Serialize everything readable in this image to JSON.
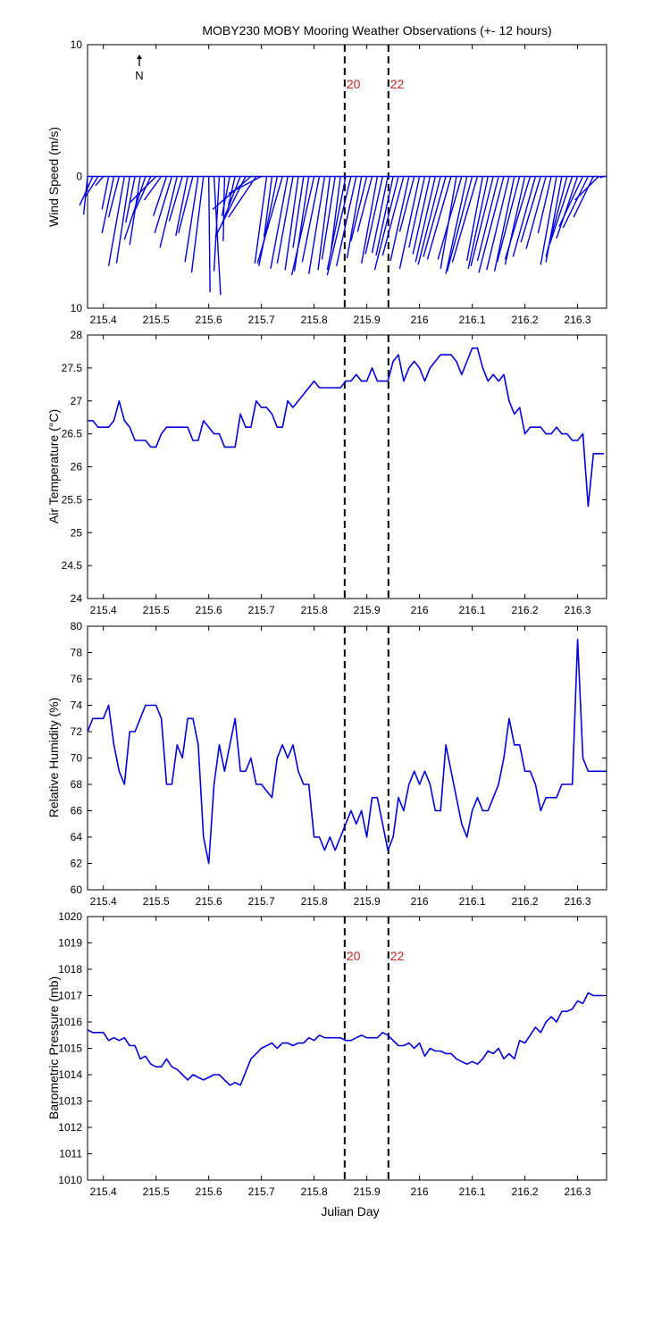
{
  "title": "MOBY230 MOBY Mooring Weather Observations (+- 12 hours)",
  "xlabel": "Julian Day",
  "north_label": "N",
  "markers": [
    {
      "x": 215.858,
      "label": "20"
    },
    {
      "x": 215.941,
      "label": "22"
    }
  ],
  "colors": {
    "series": "#0000dd",
    "marker_label": "#cc2222",
    "axis": "#000000"
  },
  "chart_data": [
    {
      "type": "line",
      "panel": "wind",
      "ylabel": "Wind Speed (m/s)",
      "xlim": [
        215.37,
        216.355
      ],
      "ylim": [
        -10,
        10
      ],
      "yticks": [
        10,
        0,
        10
      ],
      "xticks": [
        "215.4",
        "215.5",
        "215.6",
        "215.7",
        "215.8",
        "215.9",
        "216",
        "216.1",
        "216.2",
        "216.3"
      ],
      "marker_labels_shown": true,
      "stick_vectors": [
        [
          215.37,
          -0.3,
          -2.9
        ],
        [
          215.38,
          -1.0,
          -2.2
        ],
        [
          215.39,
          -1.0,
          -1.6
        ],
        [
          215.4,
          -0.6,
          -0.7
        ],
        [
          215.41,
          -0.5,
          -2.5
        ],
        [
          215.42,
          -0.9,
          -4.3
        ],
        [
          215.43,
          -0.8,
          -3.1
        ],
        [
          215.44,
          -1.2,
          -6.8
        ],
        [
          215.45,
          -1.0,
          -6.6
        ],
        [
          215.46,
          -0.7,
          -3.5
        ],
        [
          215.47,
          -0.8,
          -5.2
        ],
        [
          215.48,
          -1.6,
          -4.8
        ],
        [
          215.49,
          -1.3,
          -2.8
        ],
        [
          215.5,
          -2.0,
          -2.0
        ],
        [
          215.51,
          -1.3,
          -1.8
        ],
        [
          215.52,
          -1.0,
          -3.0
        ],
        [
          215.53,
          -1.3,
          -4.3
        ],
        [
          215.54,
          -1.3,
          -5.4
        ],
        [
          215.55,
          -1.0,
          -3.4
        ],
        [
          215.56,
          -0.9,
          -4.5
        ],
        [
          215.57,
          -1.1,
          -4.3
        ],
        [
          215.58,
          -1.0,
          -6.5
        ],
        [
          215.59,
          -0.9,
          -7.3
        ],
        [
          215.6,
          0.1,
          -8.8
        ],
        [
          215.61,
          0.5,
          -9.0
        ],
        [
          215.62,
          -0.4,
          -7.2
        ],
        [
          215.63,
          -0.1,
          -4.9
        ],
        [
          215.64,
          -0.6,
          -3.0
        ],
        [
          215.65,
          -0.5,
          -2.2
        ],
        [
          215.66,
          -1.4,
          -3.6
        ],
        [
          215.67,
          -2.3,
          -4.6
        ],
        [
          215.68,
          -2.9,
          -2.5
        ],
        [
          215.69,
          -2.1,
          -3.1
        ],
        [
          215.7,
          -2.5,
          -1.3
        ],
        [
          215.71,
          -0.9,
          -6.6
        ],
        [
          215.72,
          -0.6,
          -4.6
        ],
        [
          215.73,
          -1.4,
          -6.8
        ],
        [
          215.74,
          -1.9,
          -6.6
        ],
        [
          215.75,
          -1.3,
          -7.0
        ],
        [
          215.76,
          -1.2,
          -6.6
        ],
        [
          215.77,
          -1.0,
          -7.1
        ],
        [
          215.78,
          -0.8,
          -5.4
        ],
        [
          215.79,
          -1.1,
          -7.2
        ],
        [
          215.8,
          -1.7,
          -7.5
        ],
        [
          215.81,
          -1.3,
          -6.5
        ],
        [
          215.82,
          -1.2,
          -7.4
        ],
        [
          215.83,
          -0.9,
          -7.1
        ],
        [
          215.84,
          -1.0,
          -6.3
        ],
        [
          215.85,
          -0.7,
          -5.5
        ],
        [
          215.86,
          -1.4,
          -7.1
        ],
        [
          215.87,
          -1.8,
          -7.5
        ],
        [
          215.88,
          -1.5,
          -6.8
        ],
        [
          215.89,
          -1.1,
          -6.2
        ],
        [
          215.9,
          -1.2,
          -4.9
        ],
        [
          215.91,
          -1.1,
          -4.2
        ],
        [
          215.92,
          -1.2,
          -6.6
        ],
        [
          215.93,
          -1.3,
          -5.9
        ],
        [
          215.94,
          -1.2,
          -5.8
        ],
        [
          215.95,
          -1.3,
          -6.0
        ],
        [
          215.96,
          -1.8,
          -7.1
        ],
        [
          215.97,
          -1.6,
          -6.0
        ],
        [
          215.98,
          -1.4,
          -6.4
        ],
        [
          215.99,
          -1.1,
          -4.2
        ],
        [
          216.0,
          -1.5,
          -7.0
        ],
        [
          216.01,
          -1.2,
          -5.4
        ],
        [
          216.02,
          -1.3,
          -5.9
        ],
        [
          216.03,
          -1.5,
          -6.5
        ],
        [
          216.04,
          -1.7,
          -6.7
        ],
        [
          216.05,
          -1.7,
          -6.1
        ],
        [
          216.06,
          -1.8,
          -6.3
        ],
        [
          216.07,
          -1.2,
          -7.0
        ],
        [
          216.08,
          -1.8,
          -6.3
        ],
        [
          216.09,
          -1.6,
          -7.4
        ],
        [
          216.1,
          -1.9,
          -7.2
        ],
        [
          216.11,
          -1.9,
          -6.5
        ],
        [
          216.12,
          -1.2,
          -6.4
        ],
        [
          216.13,
          -1.5,
          -7.0
        ],
        [
          216.14,
          -1.7,
          -6.8
        ],
        [
          216.15,
          -1.6,
          -6.4
        ],
        [
          216.16,
          -1.9,
          -7.3
        ],
        [
          216.17,
          -1.7,
          -7.1
        ],
        [
          216.18,
          -1.5,
          -7.2
        ],
        [
          216.19,
          -1.7,
          -6.5
        ],
        [
          216.2,
          -1.5,
          -6.7
        ],
        [
          216.21,
          -1.9,
          -6.3
        ],
        [
          216.22,
          -1.7,
          -6.1
        ],
        [
          216.23,
          -1.5,
          -5.0
        ],
        [
          216.24,
          -1.5,
          -5.5
        ],
        [
          216.25,
          -1.0,
          -4.3
        ],
        [
          216.26,
          -1.2,
          -6.7
        ],
        [
          216.27,
          -1.2,
          -6.5
        ],
        [
          216.28,
          -1.6,
          -6.1
        ],
        [
          216.29,
          -1.7,
          -5.1
        ],
        [
          216.3,
          -1.6,
          -4.7
        ],
        [
          216.31,
          -1.8,
          -3.8
        ],
        [
          216.32,
          -1.9,
          -3.9
        ],
        [
          216.33,
          -1.5,
          -3.1
        ],
        [
          216.34,
          -1.8,
          -1.8
        ],
        [
          216.35,
          -0.3,
          -0.1
        ]
      ]
    },
    {
      "type": "line",
      "panel": "airtemp",
      "ylabel": "Air Temperature (°C)",
      "xlim": [
        215.37,
        216.355
      ],
      "ylim": [
        24,
        28
      ],
      "yticks": [
        "24",
        "24.5",
        "25",
        "25.5",
        "26",
        "26.5",
        "27",
        "27.5",
        "28"
      ],
      "xticks": [
        "215.4",
        "215.5",
        "215.6",
        "215.7",
        "215.8",
        "215.9",
        "216",
        "216.1",
        "216.2",
        "216.3"
      ],
      "x": [
        215.37,
        215.38,
        215.39,
        215.4,
        215.41,
        215.42,
        215.43,
        215.44,
        215.45,
        215.46,
        215.47,
        215.48,
        215.49,
        215.5,
        215.51,
        215.52,
        215.53,
        215.54,
        215.55,
        215.56,
        215.57,
        215.58,
        215.59,
        215.6,
        215.61,
        215.62,
        215.63,
        215.64,
        215.65,
        215.66,
        215.67,
        215.68,
        215.69,
        215.7,
        215.71,
        215.72,
        215.73,
        215.74,
        215.75,
        215.76,
        215.77,
        215.78,
        215.79,
        215.8,
        215.81,
        215.82,
        215.83,
        215.84,
        215.85,
        215.86,
        215.87,
        215.88,
        215.89,
        215.9,
        215.91,
        215.92,
        215.93,
        215.94,
        215.95,
        215.96,
        215.97,
        215.98,
        215.99,
        216.0,
        216.01,
        216.02,
        216.03,
        216.04,
        216.05,
        216.06,
        216.07,
        216.08,
        216.09,
        216.1,
        216.11,
        216.12,
        216.13,
        216.14,
        216.15,
        216.16,
        216.17,
        216.18,
        216.19,
        216.2,
        216.21,
        216.22,
        216.23,
        216.24,
        216.25,
        216.26,
        216.27,
        216.28,
        216.29,
        216.3,
        216.31,
        216.32,
        216.33,
        216.34,
        216.35
      ],
      "values": [
        26.7,
        26.7,
        26.6,
        26.6,
        26.6,
        26.7,
        27.0,
        26.7,
        26.6,
        26.4,
        26.4,
        26.4,
        26.3,
        26.3,
        26.5,
        26.6,
        26.6,
        26.6,
        26.6,
        26.6,
        26.4,
        26.4,
        26.7,
        26.6,
        26.5,
        26.5,
        26.3,
        26.3,
        26.3,
        26.8,
        26.6,
        26.6,
        27.0,
        26.9,
        26.9,
        26.8,
        26.6,
        26.6,
        27.0,
        26.9,
        27.0,
        27.1,
        27.2,
        27.3,
        27.2,
        27.2,
        27.2,
        27.2,
        27.2,
        27.3,
        27.3,
        27.4,
        27.3,
        27.3,
        27.5,
        27.3,
        27.3,
        27.3,
        27.6,
        27.7,
        27.3,
        27.5,
        27.6,
        27.5,
        27.3,
        27.5,
        27.6,
        27.7,
        27.7,
        27.7,
        27.6,
        27.4,
        27.6,
        27.8,
        27.8,
        27.5,
        27.3,
        27.4,
        27.3,
        27.4,
        27.0,
        26.8,
        26.9,
        26.5,
        26.6,
        26.6,
        26.6,
        26.5,
        26.5,
        26.6,
        26.5,
        26.5,
        26.4,
        26.4,
        26.5,
        25.4,
        26.2,
        26.2,
        26.2
      ]
    },
    {
      "type": "line",
      "panel": "humidity",
      "ylabel": "Relative Humidity (%)",
      "xlim": [
        215.37,
        216.355
      ],
      "ylim": [
        60,
        80
      ],
      "yticks": [
        "60",
        "62",
        "64",
        "66",
        "68",
        "70",
        "72",
        "74",
        "76",
        "78",
        "80"
      ],
      "xticks": [
        "215.4",
        "215.5",
        "215.6",
        "215.7",
        "215.8",
        "215.9",
        "216",
        "216.1",
        "216.2",
        "216.3"
      ],
      "x": [
        215.37,
        215.38,
        215.39,
        215.4,
        215.41,
        215.42,
        215.43,
        215.44,
        215.45,
        215.46,
        215.47,
        215.48,
        215.49,
        215.5,
        215.51,
        215.52,
        215.53,
        215.54,
        215.55,
        215.56,
        215.57,
        215.58,
        215.59,
        215.6,
        215.61,
        215.62,
        215.63,
        215.64,
        215.65,
        215.66,
        215.67,
        215.68,
        215.69,
        215.7,
        215.71,
        215.72,
        215.73,
        215.74,
        215.75,
        215.76,
        215.77,
        215.78,
        215.79,
        215.8,
        215.81,
        215.82,
        215.83,
        215.84,
        215.85,
        215.86,
        215.87,
        215.88,
        215.89,
        215.9,
        215.91,
        215.92,
        215.93,
        215.94,
        215.95,
        215.96,
        215.97,
        215.98,
        215.99,
        216.0,
        216.01,
        216.02,
        216.03,
        216.04,
        216.05,
        216.06,
        216.07,
        216.08,
        216.09,
        216.1,
        216.11,
        216.12,
        216.13,
        216.14,
        216.15,
        216.16,
        216.17,
        216.18,
        216.19,
        216.2,
        216.21,
        216.22,
        216.23,
        216.24,
        216.25,
        216.26,
        216.27,
        216.28,
        216.29,
        216.3,
        216.31,
        216.32,
        216.33,
        216.34,
        216.345,
        216.35,
        216.355
      ],
      "values": [
        72,
        73,
        73,
        73,
        74,
        71,
        69,
        68,
        72,
        72,
        73,
        74,
        74,
        74,
        73,
        68,
        68,
        71,
        70,
        73,
        73,
        71,
        64,
        62,
        68,
        71,
        69,
        71,
        73,
        69,
        69,
        70,
        68,
        68,
        67.5,
        67,
        70,
        71,
        70,
        71,
        69,
        68,
        68,
        64,
        64,
        63,
        64,
        63,
        64,
        65,
        66,
        65,
        66,
        64,
        67,
        67,
        65,
        63,
        64,
        67,
        66,
        68,
        69,
        68,
        69,
        68,
        66,
        66,
        71,
        69,
        67,
        65,
        64,
        66,
        67,
        66,
        66,
        67,
        68,
        70,
        73,
        71,
        71,
        69,
        69,
        68,
        66,
        67,
        67,
        67,
        68,
        68,
        68,
        79,
        70,
        69,
        69,
        69,
        69,
        69,
        69
      ]
    },
    {
      "type": "line",
      "panel": "pressure",
      "ylabel": "Barometric Pressure (mb)",
      "xlim": [
        215.37,
        216.355
      ],
      "ylim": [
        1010,
        1020
      ],
      "yticks": [
        "1010",
        "1011",
        "1012",
        "1013",
        "1014",
        "1015",
        "1016",
        "1017",
        "1018",
        "1019",
        "1020"
      ],
      "xticks": [
        "215.4",
        "215.5",
        "215.6",
        "215.7",
        "215.8",
        "215.9",
        "216",
        "216.1",
        "216.2",
        "216.3"
      ],
      "marker_labels_shown": true,
      "x": [
        215.37,
        215.38,
        215.39,
        215.4,
        215.41,
        215.42,
        215.43,
        215.44,
        215.45,
        215.46,
        215.47,
        215.48,
        215.49,
        215.5,
        215.51,
        215.52,
        215.53,
        215.54,
        215.55,
        215.56,
        215.57,
        215.58,
        215.59,
        215.6,
        215.61,
        215.62,
        215.63,
        215.64,
        215.65,
        215.66,
        215.67,
        215.68,
        215.69,
        215.7,
        215.71,
        215.72,
        215.73,
        215.74,
        215.75,
        215.76,
        215.77,
        215.78,
        215.79,
        215.8,
        215.81,
        215.82,
        215.83,
        215.84,
        215.85,
        215.86,
        215.87,
        215.88,
        215.89,
        215.9,
        215.91,
        215.92,
        215.93,
        215.94,
        215.95,
        215.96,
        215.97,
        215.98,
        215.99,
        216.0,
        216.01,
        216.02,
        216.03,
        216.04,
        216.05,
        216.06,
        216.07,
        216.08,
        216.09,
        216.1,
        216.11,
        216.12,
        216.13,
        216.14,
        216.15,
        216.16,
        216.17,
        216.18,
        216.19,
        216.2,
        216.21,
        216.22,
        216.23,
        216.24,
        216.25,
        216.26,
        216.27,
        216.28,
        216.29,
        216.3,
        216.31,
        216.32,
        216.33,
        216.34,
        216.35
      ],
      "values": [
        1015.7,
        1015.6,
        1015.6,
        1015.6,
        1015.3,
        1015.4,
        1015.3,
        1015.4,
        1015.1,
        1015.1,
        1014.6,
        1014.7,
        1014.4,
        1014.3,
        1014.3,
        1014.6,
        1014.3,
        1014.2,
        1014.0,
        1013.8,
        1014.0,
        1013.9,
        1013.8,
        1013.9,
        1014.0,
        1014.0,
        1013.8,
        1013.6,
        1013.7,
        1013.6,
        1014.1,
        1014.6,
        1014.8,
        1015.0,
        1015.1,
        1015.2,
        1015.0,
        1015.2,
        1015.2,
        1015.1,
        1015.2,
        1015.2,
        1015.4,
        1015.3,
        1015.5,
        1015.4,
        1015.4,
        1015.4,
        1015.4,
        1015.3,
        1015.3,
        1015.4,
        1015.5,
        1015.4,
        1015.4,
        1015.4,
        1015.6,
        1015.5,
        1015.3,
        1015.1,
        1015.1,
        1015.2,
        1015.0,
        1015.2,
        1014.7,
        1015.0,
        1014.9,
        1014.9,
        1014.8,
        1014.8,
        1014.6,
        1014.5,
        1014.4,
        1014.5,
        1014.4,
        1014.6,
        1014.9,
        1014.8,
        1015.0,
        1014.6,
        1014.8,
        1014.6,
        1015.3,
        1015.2,
        1015.5,
        1015.8,
        1015.6,
        1016.0,
        1016.2,
        1016.0,
        1016.4,
        1016.4,
        1016.5,
        1016.8,
        1016.7,
        1017.1,
        1017.0,
        1017.0,
        1017.0
      ]
    }
  ]
}
